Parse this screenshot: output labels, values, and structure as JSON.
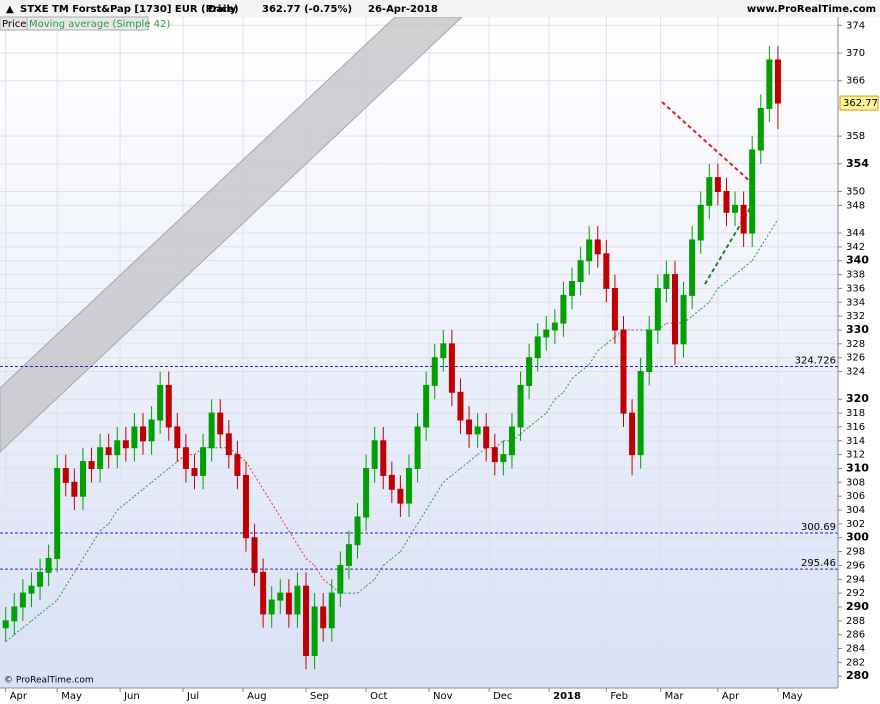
{
  "header": {
    "title": "STXE TM Forst&Pap [1730] EUR (Price)",
    "period": "Daily",
    "quote": "362.77 (-0.75%)",
    "date": "26-Apr-2018",
    "site": "www.ProRealTime.com",
    "copyright": "© ProRealTime.com"
  },
  "chart_data": {
    "type": "candlestick",
    "price_name": "Price",
    "up_color": "#00a000",
    "down_color": "#c00000",
    "x": [
      0,
      3,
      6,
      9,
      12,
      15,
      18,
      21,
      24,
      27,
      30,
      33,
      36,
      39,
      42,
      45,
      48,
      51,
      54,
      57,
      60,
      63,
      66,
      69,
      72,
      75,
      78,
      81,
      84,
      87,
      90,
      93,
      96,
      99,
      102,
      105,
      108,
      111,
      114,
      117,
      120,
      123,
      126,
      129,
      132,
      135,
      138,
      141,
      144,
      147,
      150,
      153,
      156,
      159,
      162,
      165,
      168,
      171,
      174,
      177,
      180,
      183,
      186,
      189,
      192,
      195,
      198,
      201,
      204,
      207,
      210,
      213,
      216,
      219,
      222,
      225,
      228,
      231,
      234,
      237,
      240,
      243,
      246,
      249,
      252,
      255,
      258,
      261,
      264,
      267,
      270
    ],
    "open": [
      287,
      288,
      290,
      292,
      293,
      295,
      297,
      310,
      308,
      306,
      311,
      310,
      313,
      312,
      314,
      313,
      316,
      314,
      317,
      322,
      316,
      313,
      310,
      309,
      313,
      318,
      315,
      312,
      309,
      300,
      295,
      289,
      291,
      292,
      289,
      293,
      283,
      290,
      287,
      292,
      296,
      299,
      303,
      310,
      314,
      309,
      307,
      305,
      310,
      316,
      322,
      326,
      328,
      321,
      317,
      315,
      316,
      313,
      311,
      312,
      316,
      322,
      326,
      329,
      330,
      331,
      335,
      337,
      340,
      343,
      341,
      336,
      330,
      318,
      312,
      324,
      330,
      336,
      338,
      328,
      335,
      343,
      348,
      352,
      350,
      347,
      348,
      344,
      356,
      362,
      369
    ],
    "high": [
      290,
      292,
      294,
      295,
      297,
      299,
      312,
      312,
      310,
      313,
      313,
      315,
      315,
      316,
      316,
      318,
      318,
      319,
      324,
      324,
      318,
      315,
      312,
      315,
      320,
      320,
      317,
      314,
      311,
      302,
      297,
      293,
      294,
      294,
      295,
      295,
      292,
      292,
      294,
      298,
      301,
      305,
      312,
      316,
      316,
      311,
      309,
      312,
      318,
      324,
      328,
      330,
      330,
      323,
      319,
      318,
      318,
      315,
      314,
      318,
      324,
      328,
      331,
      332,
      333,
      337,
      339,
      342,
      345,
      345,
      343,
      338,
      332,
      320,
      326,
      332,
      338,
      340,
      340,
      337,
      345,
      350,
      354,
      354,
      352,
      350,
      350,
      358,
      364,
      371,
      371
    ],
    "low": [
      285,
      286,
      288,
      290,
      291,
      293,
      295,
      306,
      304,
      304,
      308,
      308,
      310,
      310,
      311,
      311,
      312,
      312,
      315,
      314,
      311,
      308,
      307,
      307,
      311,
      313,
      310,
      307,
      298,
      293,
      287,
      287,
      289,
      287,
      287,
      281,
      281,
      285,
      285,
      290,
      294,
      297,
      301,
      308,
      307,
      305,
      303,
      303,
      308,
      314,
      320,
      324,
      319,
      315,
      313,
      313,
      311,
      309,
      309,
      310,
      314,
      320,
      324,
      327,
      328,
      329,
      333,
      335,
      338,
      339,
      334,
      328,
      316,
      309,
      310,
      322,
      328,
      334,
      325,
      326,
      333,
      341,
      346,
      348,
      345,
      345,
      342,
      342,
      354,
      360,
      359
    ],
    "close": [
      288,
      290,
      292,
      293,
      295,
      297,
      310,
      308,
      306,
      311,
      310,
      313,
      312,
      314,
      313,
      316,
      314,
      317,
      322,
      316,
      313,
      310,
      309,
      313,
      318,
      315,
      312,
      309,
      300,
      295,
      289,
      291,
      292,
      289,
      293,
      283,
      290,
      287,
      292,
      296,
      299,
      303,
      310,
      314,
      309,
      307,
      305,
      310,
      316,
      322,
      326,
      328,
      321,
      317,
      315,
      316,
      313,
      311,
      312,
      316,
      322,
      326,
      329,
      330,
      331,
      335,
      337,
      340,
      343,
      341,
      336,
      330,
      318,
      312,
      324,
      330,
      336,
      338,
      328,
      335,
      343,
      348,
      352,
      350,
      347,
      348,
      344,
      356,
      362,
      369,
      362.77
    ],
    "ma": {
      "name": "Moving average (Simple 42)",
      "values": [
        285,
        286,
        287,
        288,
        289,
        290,
        291,
        293,
        295,
        297,
        299,
        301,
        302,
        304,
        305,
        306,
        307,
        308,
        309,
        310,
        311,
        312,
        312,
        313,
        313,
        313,
        313,
        312,
        311,
        309,
        307,
        305,
        303,
        301,
        299,
        297,
        296,
        294,
        293,
        292,
        292,
        292,
        293,
        294,
        296,
        297,
        298,
        300,
        302,
        304,
        306,
        308,
        309,
        310,
        311,
        312,
        313,
        313,
        314,
        314,
        315,
        316,
        317,
        318,
        320,
        321,
        323,
        324,
        325,
        327,
        328,
        329,
        330,
        330,
        330,
        330,
        330,
        331,
        331,
        331,
        332,
        333,
        334,
        336,
        337,
        338,
        339,
        340,
        342,
        344,
        346
      ]
    },
    "hlines": [
      {
        "value": 324.726
      },
      {
        "value": 300.69
      },
      {
        "value": 295.46
      }
    ],
    "hline_color": "#2020c0",
    "xlim": [
      -2,
      291
    ],
    "xticks": [
      {
        "value": 0,
        "label": "Apr"
      },
      {
        "value": 18,
        "label": "May"
      },
      {
        "value": 40,
        "label": "Jun"
      },
      {
        "value": 62,
        "label": "Jul"
      },
      {
        "value": 83,
        "label": "Aug"
      },
      {
        "value": 105,
        "label": "Sep"
      },
      {
        "value": 126,
        "label": "Oct"
      },
      {
        "value": 148,
        "label": "Nov"
      },
      {
        "value": 169,
        "label": "Dec"
      },
      {
        "value": 190,
        "label": "2018"
      },
      {
        "value": 210,
        "label": "Feb"
      },
      {
        "value": 229,
        "label": "Mar"
      },
      {
        "value": 249,
        "label": "Apr"
      },
      {
        "value": 270,
        "label": "May"
      }
    ],
    "ylim": [
      278.3,
      375.2
    ],
    "yticks": [
      280,
      282,
      284,
      286,
      288,
      290,
      292,
      294,
      296,
      298,
      300,
      302,
      304,
      306,
      308,
      310,
      312,
      314,
      316,
      318,
      320,
      324,
      326,
      328,
      330,
      332,
      334,
      336,
      338,
      340,
      342,
      344,
      348,
      350,
      354,
      358,
      366,
      370,
      374
    ],
    "bold_yticks": [
      280,
      290,
      300,
      310,
      320,
      330,
      340,
      354
    ],
    "grid": true
  }
}
